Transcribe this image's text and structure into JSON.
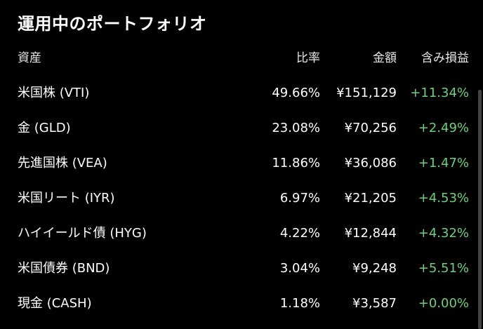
{
  "title": "運用中のポートフォリオ",
  "columns": {
    "asset": "資産",
    "ratio": "比率",
    "amount": "金額",
    "profit_loss": "含み損益"
  },
  "rows": [
    {
      "asset": "米国株 (VTI)",
      "ratio": "49.66%",
      "amount": "¥151,129",
      "profit_loss": "+11.34%"
    },
    {
      "asset": "金 (GLD)",
      "ratio": "23.08%",
      "amount": "¥70,256",
      "profit_loss": "+2.49%"
    },
    {
      "asset": "先進国株 (VEA)",
      "ratio": "11.86%",
      "amount": "¥36,086",
      "profit_loss": "+1.47%"
    },
    {
      "asset": "米国リート (IYR)",
      "ratio": "6.97%",
      "amount": "¥21,205",
      "profit_loss": "+4.53%"
    },
    {
      "asset": "ハイイールド債 (HYG)",
      "ratio": "4.22%",
      "amount": "¥12,844",
      "profit_loss": "+4.32%"
    },
    {
      "asset": "米国債券 (BND)",
      "ratio": "3.04%",
      "amount": "¥9,248",
      "profit_loss": "+5.51%"
    },
    {
      "asset": "現金 (CASH)",
      "ratio": "1.18%",
      "amount": "¥3,587",
      "profit_loss": "+0.00%"
    }
  ],
  "colors": {
    "background": "#000000",
    "text": "#ffffff",
    "gain": "#6fcf7a"
  }
}
